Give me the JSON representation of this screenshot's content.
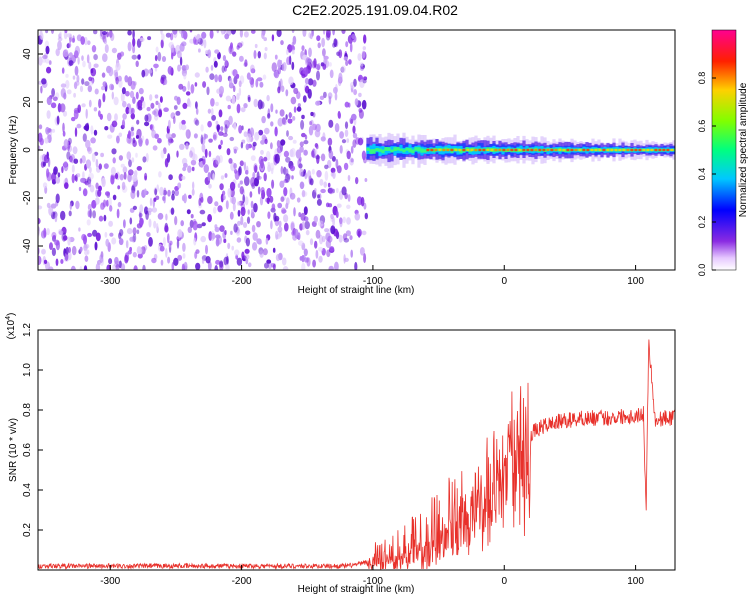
{
  "title": "C2E2.2025.191.09.04.R02",
  "chart_data": [
    {
      "type": "heatmap",
      "title": "C2E2.2025.191.09.04.R02",
      "xlabel": "Height of straight line (km)",
      "ylabel": "Frequency (Hz)",
      "xlim": [
        -355,
        130
      ],
      "ylim": [
        -50,
        50
      ],
      "x_ticks": [
        -300,
        -200,
        -100,
        0,
        100
      ],
      "y_ticks": [
        -40,
        -20,
        0,
        20,
        40
      ],
      "colorbar": {
        "label": "Normalized spectral amplitude",
        "range": [
          0.0,
          1.0
        ],
        "ticks": [
          "0.0",
          "0.2",
          "0.4",
          "0.6",
          "0.8"
        ],
        "colormap": "rainbow (white-violet-blue-cyan-green-yellow-red-magenta)"
      },
      "regions": [
        {
          "x_range": [
            -355,
            -105
          ],
          "f_range": [
            -50,
            50
          ],
          "amplitude": 0.05,
          "description": "noise"
        },
        {
          "x_range": [
            -105,
            130
          ],
          "f_center": 0,
          "amplitude_range": [
            0.3,
            0.9
          ],
          "description": "narrow band near 0 Hz"
        }
      ]
    },
    {
      "type": "line",
      "xlabel": "Height of straight line (km)",
      "ylabel": "SNR (10 * v/v)",
      "y_multiplier": "(x10^4)",
      "xlim": [
        -355,
        130
      ],
      "ylim": [
        0.0,
        1.2
      ],
      "x_ticks": [
        -300,
        -200,
        -100,
        0,
        100
      ],
      "y_ticks": [
        0.2,
        0.4,
        0.6,
        0.8,
        1.0,
        1.2
      ],
      "color": "#e8302a",
      "series": [
        {
          "x": [
            -355,
            -300,
            -250,
            -200,
            -150,
            -120,
            -110,
            -100,
            -90,
            -80,
            -70,
            -60,
            -50,
            -40,
            -30,
            -20,
            -10,
            0,
            10,
            20,
            30,
            40,
            50,
            60,
            70,
            80,
            90,
            100,
            106,
            108,
            110,
            115,
            120,
            130
          ],
          "y": [
            0.02,
            0.02,
            0.02,
            0.02,
            0.02,
            0.02,
            0.03,
            0.05,
            0.07,
            0.09,
            0.12,
            0.16,
            0.21,
            0.27,
            0.33,
            0.41,
            0.49,
            0.56,
            0.63,
            0.68,
            0.72,
            0.74,
            0.75,
            0.76,
            0.76,
            0.76,
            0.77,
            0.77,
            0.78,
            0.3,
            1.15,
            0.74,
            0.76,
            0.76
          ]
        }
      ]
    }
  ],
  "labels": {
    "y_multiplier_base": "(x10",
    "y_multiplier_exp": "4",
    "y_multiplier_close": ")"
  }
}
